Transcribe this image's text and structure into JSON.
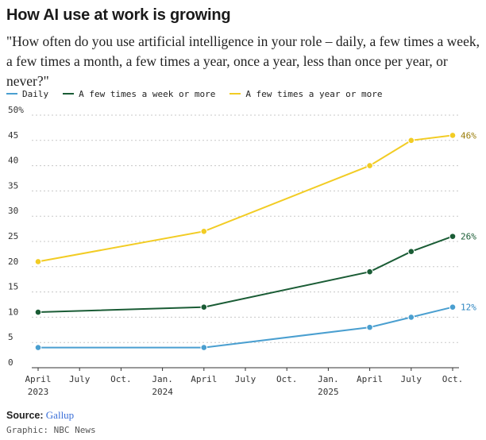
{
  "chart_data": {
    "type": "line",
    "title": "How AI use at work is growing",
    "subtitle": "\"How often do you use artificial intelligence in your role – daily, a few times a week, a few times a month, a few times a year, once a year, less than once per year, or never?\"",
    "x": [
      {
        "label": "April",
        "year": "2023",
        "t": 0
      },
      {
        "label": "July",
        "year": "",
        "t": 1
      },
      {
        "label": "Oct.",
        "year": "",
        "t": 2
      },
      {
        "label": "Jan.",
        "year": "2024",
        "t": 3
      },
      {
        "label": "April",
        "year": "",
        "t": 4
      },
      {
        "label": "July",
        "year": "",
        "t": 5
      },
      {
        "label": "Oct.",
        "year": "",
        "t": 6
      },
      {
        "label": "Jan.",
        "year": "2025",
        "t": 7
      },
      {
        "label": "April",
        "year": "",
        "t": 8
      },
      {
        "label": "July",
        "year": "",
        "t": 9
      },
      {
        "label": "Oct.",
        "year": "",
        "t": 10
      }
    ],
    "yticks": [
      "0",
      "5",
      "10",
      "15",
      "20",
      "25",
      "30",
      "35",
      "40",
      "45",
      "50%"
    ],
    "ylim": [
      0,
      50
    ],
    "grid": true,
    "series": [
      {
        "name": "Daily",
        "color": "#4a9fd0",
        "points": [
          [
            0,
            4
          ],
          [
            4,
            4
          ],
          [
            8,
            8
          ],
          [
            9,
            10
          ],
          [
            10,
            12
          ]
        ],
        "end_label": "12%"
      },
      {
        "name": "A few times a week or more",
        "color": "#1a5c35",
        "points": [
          [
            0,
            11
          ],
          [
            4,
            12
          ],
          [
            8,
            19
          ],
          [
            9,
            23
          ],
          [
            10,
            26
          ]
        ],
        "end_label": "26%"
      },
      {
        "name": "A few times a year or more",
        "color": "#f2cc24",
        "points": [
          [
            0,
            21
          ],
          [
            4,
            27
          ],
          [
            8,
            40
          ],
          [
            9,
            45
          ],
          [
            10,
            46
          ]
        ],
        "end_label": "46%"
      }
    ],
    "end_label_colors": [
      "#2e86c1",
      "#1a5c35",
      "#9a7d0a"
    ]
  },
  "footer": {
    "source_label": "Source:",
    "source_name": "Gallup",
    "graphic_credit": "Graphic: NBC News"
  }
}
